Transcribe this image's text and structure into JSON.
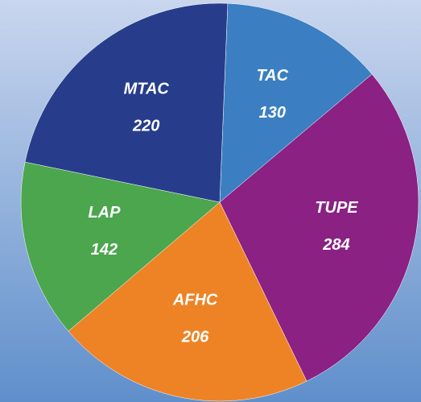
{
  "chart_data": {
    "type": "pie",
    "categories": [
      "TAC",
      "TUPE",
      "AFHC",
      "LAP",
      "MTAC"
    ],
    "values": [
      130,
      284,
      206,
      142,
      220
    ],
    "colors": [
      "#3b7fc2",
      "#8a2183",
      "#ee8326",
      "#4ba64d",
      "#273d8c"
    ]
  }
}
